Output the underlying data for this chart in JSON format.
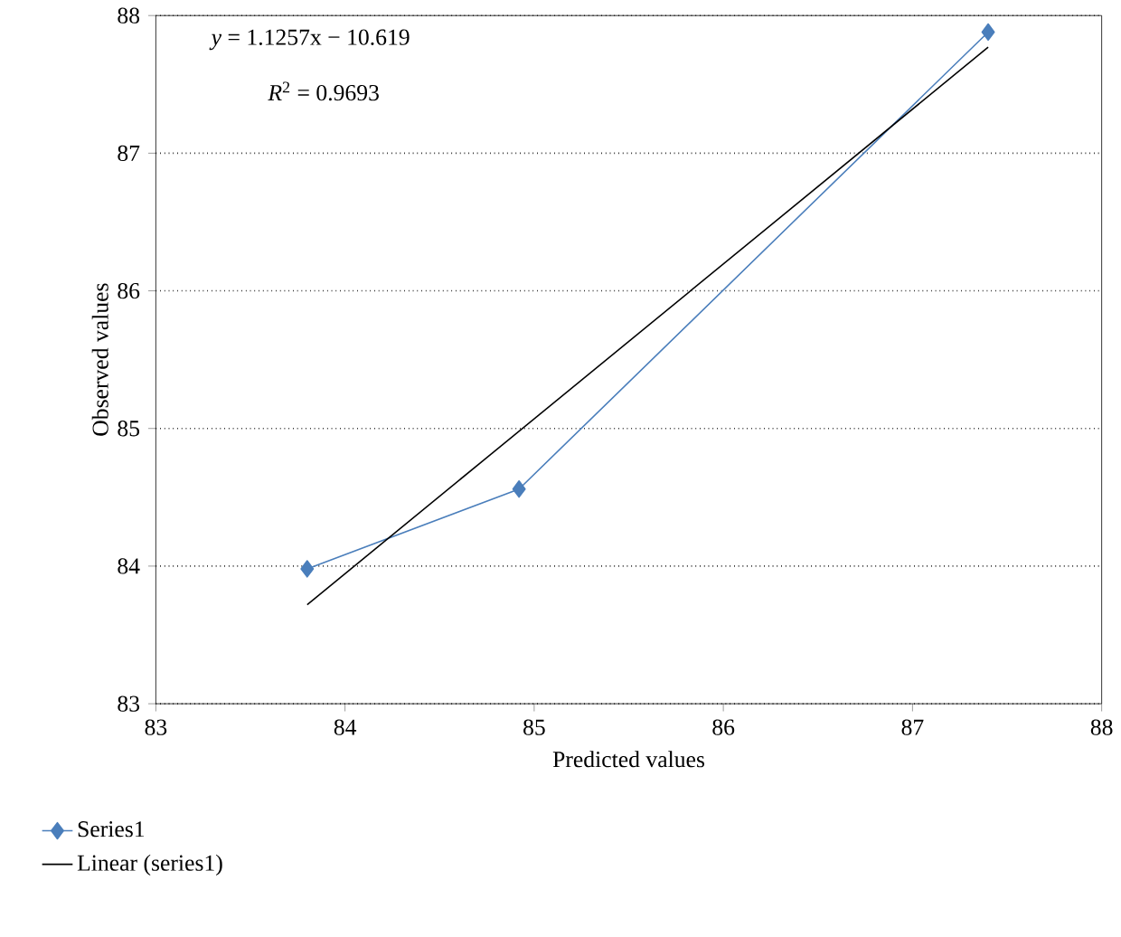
{
  "chart_data": {
    "type": "line",
    "xlabel": "Predicted values",
    "ylabel": "Observed values",
    "xlim": [
      83,
      88
    ],
    "ylim": [
      83,
      88
    ],
    "xticks": [
      83,
      84,
      85,
      86,
      87,
      88
    ],
    "yticks": [
      83,
      84,
      85,
      86,
      87,
      88
    ],
    "grid": "y",
    "legend": "bottom left",
    "annotations": [
      "*y* = 1.1257x − 10.619",
      "*R*$^{2}$ = 0.9693"
    ],
    "series": [
      {
        "name": "Series1",
        "color": "#4a7ebb",
        "marker": "diamond",
        "x": [
          83.8,
          84.92,
          87.4
        ],
        "values": [
          83.98,
          84.56,
          87.88
        ]
      },
      {
        "name": "Linear (series1)",
        "color": "#000000",
        "marker": "none",
        "x": [
          83.8,
          87.4
        ],
        "values": [
          83.72,
          87.77
        ]
      }
    ]
  }
}
